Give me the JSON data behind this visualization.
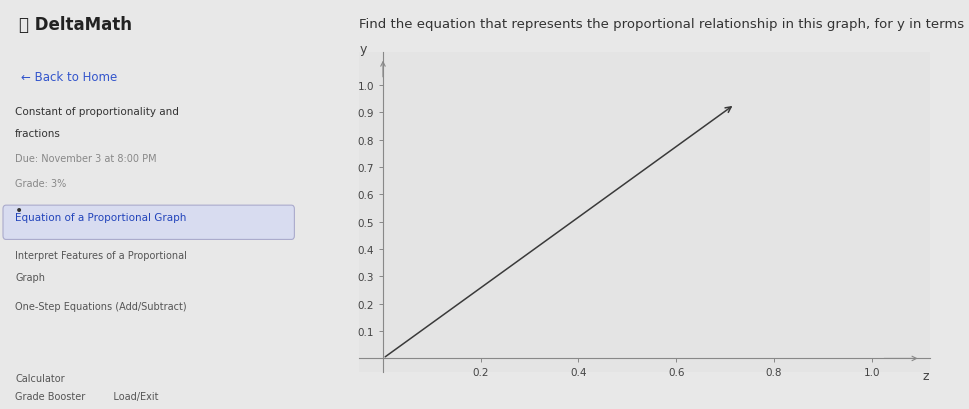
{
  "title": "Find the equation that represents the proportional relationship in this graph, for y in terms of z.",
  "header_logo": "DeltaMath",
  "xlabel": "z",
  "ylabel": "y",
  "x_ticks": [
    0.2,
    0.4,
    0.6,
    0.8,
    1.0
  ],
  "y_ticks": [
    0.1,
    0.2,
    0.3,
    0.4,
    0.5,
    0.6,
    0.7,
    0.8,
    0.9,
    1.0
  ],
  "xlim": [
    -0.05,
    1.12
  ],
  "ylim": [
    -0.05,
    1.12
  ],
  "line_x_start": 0.0,
  "line_y_start": 0.0,
  "line_x_end": 0.72,
  "line_y_end": 0.93,
  "line_color": "#3a3a3a",
  "bg_color": "#e8e8e8",
  "sidebar_bg": "#efefef",
  "header_bg": "#f5f5f5",
  "graph_bg": "#e4e4e4",
  "axis_color": "#888888",
  "tick_color": "#444444",
  "slope": 1.3
}
